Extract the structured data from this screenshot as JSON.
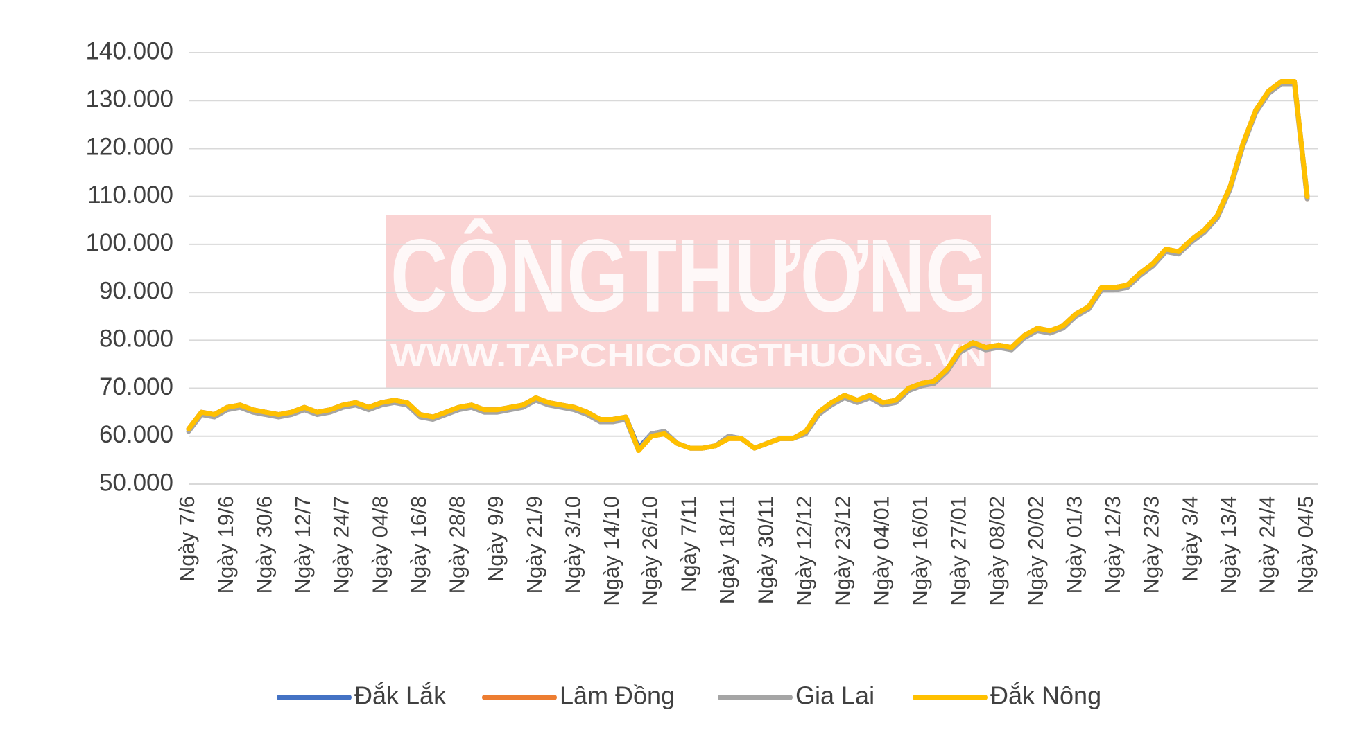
{
  "watermark": {
    "title": "CÔNGTHƯƠNG",
    "site": "WWW.TAPCHICONGTHUONG.VN"
  },
  "chart_data": {
    "type": "line",
    "categories": [
      "Ngày 7/6",
      null,
      null,
      "Ngày 19/6",
      null,
      null,
      "Ngày 30/6",
      null,
      null,
      "Ngày 12/7",
      null,
      null,
      "Ngày 24/7",
      null,
      null,
      "Ngày 04/8",
      null,
      null,
      "Ngày 16/8",
      null,
      null,
      "Ngày 28/8",
      null,
      null,
      "Ngày 9/9",
      null,
      null,
      "Ngày 21/9",
      null,
      null,
      "Ngày 3/10",
      null,
      null,
      "Ngày 14/10",
      null,
      null,
      "Ngày 26/10",
      null,
      null,
      "Ngày 7/11",
      null,
      null,
      "Ngày 18/11",
      null,
      null,
      "Ngày 30/11",
      null,
      null,
      "Ngày 12/12",
      null,
      null,
      "Ngày 23/12",
      null,
      null,
      "Ngày 04/01",
      null,
      null,
      "Ngày 16/01",
      null,
      null,
      "Ngày 27/01",
      null,
      null,
      "Ngày 08/02",
      null,
      null,
      "Ngày 20/02",
      null,
      null,
      "Ngày 01/3",
      null,
      null,
      "Ngày 12/3",
      null,
      null,
      "Ngày 23/3",
      null,
      null,
      "Ngày 3/4",
      null,
      null,
      "Ngày 13/4",
      null,
      null,
      "Ngày 24/4",
      null,
      null,
      "Ngày 04/5"
    ],
    "series": [
      {
        "name": "Đắk Lắk",
        "color": "#4472c4",
        "values": [
          61500,
          65000,
          64500,
          66000,
          66500,
          65500,
          65000,
          64500,
          65000,
          66000,
          65000,
          65500,
          66500,
          67000,
          66000,
          67000,
          67500,
          67000,
          64500,
          64000,
          65000,
          66000,
          66500,
          65500,
          65500,
          66000,
          66500,
          68000,
          67000,
          66500,
          66000,
          65000,
          63500,
          63500,
          64000,
          57500,
          60500,
          61000,
          58500,
          57500,
          57500,
          58000,
          60000,
          59500,
          57500,
          58500,
          59500,
          59500,
          61000,
          65000,
          67000,
          68500,
          67500,
          68500,
          67000,
          67500,
          70000,
          71000,
          71500,
          74000,
          78000,
          79500,
          78500,
          79000,
          78500,
          81000,
          82500,
          82000,
          83000,
          85500,
          87000,
          91000,
          91000,
          91500,
          94000,
          96000,
          99000,
          98500,
          101000,
          103000,
          106000,
          112000,
          121000,
          128000,
          132000,
          134000,
          134000,
          110000
        ]
      },
      {
        "name": "Lâm Đồng",
        "color": "#ed7d31",
        "values": [
          61500,
          65000,
          64500,
          66000,
          66500,
          65500,
          65000,
          64500,
          65000,
          66000,
          65000,
          65500,
          66500,
          67000,
          66000,
          67000,
          67500,
          67000,
          64500,
          64000,
          65000,
          66000,
          66500,
          65500,
          65500,
          66000,
          66500,
          68000,
          67000,
          66500,
          66000,
          65000,
          63500,
          63500,
          64000,
          57000,
          60000,
          60500,
          58500,
          57500,
          57500,
          58000,
          59500,
          59500,
          57500,
          58500,
          59500,
          59500,
          61000,
          65000,
          67000,
          68500,
          67500,
          68500,
          67000,
          67500,
          70000,
          71000,
          71500,
          74000,
          78000,
          79500,
          78500,
          79000,
          78500,
          81000,
          82500,
          82000,
          83000,
          85500,
          87000,
          91000,
          91000,
          91500,
          94000,
          96000,
          99000,
          98500,
          101000,
          103000,
          106000,
          112000,
          121000,
          128000,
          132000,
          134000,
          134000,
          109500
        ]
      },
      {
        "name": "Gia Lai",
        "color": "#a5a5a5",
        "values": [
          61000,
          64500,
          64000,
          65500,
          66000,
          65000,
          64500,
          64000,
          64500,
          65500,
          64500,
          65000,
          66000,
          66500,
          65500,
          66500,
          67000,
          66500,
          64000,
          63500,
          64500,
          65500,
          66000,
          65000,
          65000,
          65500,
          66000,
          67500,
          66500,
          66000,
          65500,
          64500,
          63000,
          63000,
          63500,
          57000,
          60500,
          61000,
          58500,
          57500,
          57500,
          58000,
          60000,
          59500,
          57500,
          58500,
          59500,
          59500,
          60500,
          64500,
          66500,
          68000,
          67000,
          68000,
          66500,
          67000,
          69500,
          70500,
          71000,
          73500,
          77500,
          79000,
          78000,
          78500,
          78000,
          80500,
          82000,
          81500,
          82500,
          85000,
          86500,
          90500,
          90500,
          91000,
          93500,
          95500,
          98500,
          98000,
          100500,
          102500,
          105500,
          111500,
          120500,
          127500,
          131500,
          133500,
          133500,
          109500
        ]
      },
      {
        "name": "Đắk Nông",
        "color": "#ffc000",
        "values": [
          61500,
          65000,
          64500,
          66000,
          66500,
          65500,
          65000,
          64500,
          65000,
          66000,
          65000,
          65500,
          66500,
          67000,
          66000,
          67000,
          67500,
          67000,
          64500,
          64000,
          65000,
          66000,
          66500,
          65500,
          65500,
          66000,
          66500,
          68000,
          67000,
          66500,
          66000,
          65000,
          63500,
          63500,
          64000,
          57000,
          60000,
          60500,
          58500,
          57500,
          57500,
          58000,
          59500,
          59500,
          57500,
          58500,
          59500,
          59500,
          61000,
          65000,
          67000,
          68500,
          67500,
          68500,
          67000,
          67500,
          70000,
          71000,
          71500,
          74000,
          78000,
          79500,
          78500,
          79000,
          78500,
          81000,
          82500,
          82000,
          83000,
          85500,
          87000,
          91000,
          91000,
          91500,
          94000,
          96000,
          99000,
          98500,
          101000,
          103000,
          106000,
          112000,
          121000,
          128000,
          132000,
          134000,
          134000,
          110000
        ]
      }
    ],
    "ylim": [
      50000,
      140000
    ],
    "yticks": [
      {
        "value": 50000,
        "label": "50.000"
      },
      {
        "value": 60000,
        "label": "60.000"
      },
      {
        "value": 70000,
        "label": "70.000"
      },
      {
        "value": 80000,
        "label": "80.000"
      },
      {
        "value": 90000,
        "label": "90.000"
      },
      {
        "value": 100000,
        "label": "100.000"
      },
      {
        "value": 110000,
        "label": "110.000"
      },
      {
        "value": 120000,
        "label": "120.000"
      },
      {
        "value": 130000,
        "label": "130.000"
      },
      {
        "value": 140000,
        "label": "140.000"
      }
    ],
    "grid": true,
    "legend": "bottom"
  }
}
